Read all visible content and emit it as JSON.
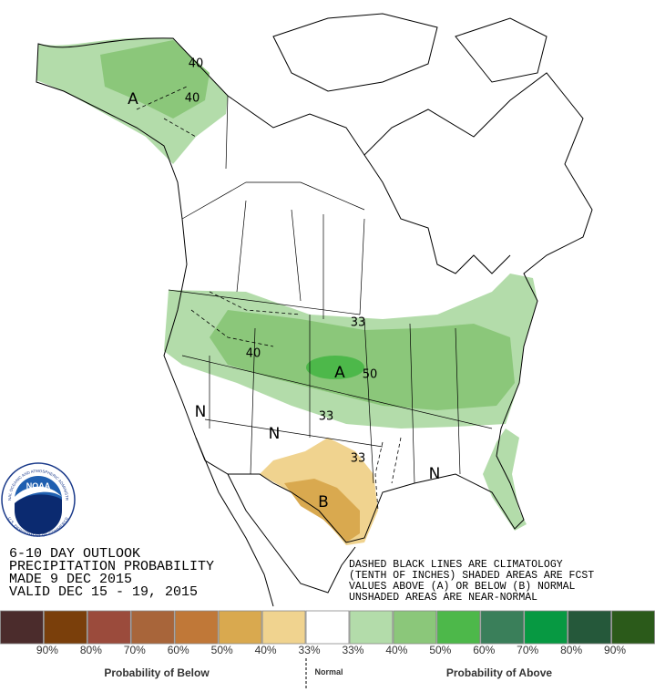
{
  "map_labels": [
    "40",
    "40",
    "A",
    "33",
    "40",
    "A",
    "50",
    "33",
    "N",
    "N",
    "33",
    "N",
    "B"
  ],
  "title_block": [
    "6-10 DAY OUTLOOK",
    "PRECIPITATION PROBABILITY",
    "MADE  9 DEC 2015",
    "VALID  DEC 15 - 19, 2015"
  ],
  "notes": [
    "DASHED BLACK LINES ARE CLIMATOLOGY",
    "(TENTH OF INCHES) SHADED AREAS ARE FCST",
    "VALUES ABOVE (A) OR BELOW (B) NORMAL",
    "UNSHADED AREAS ARE NEAR-NORMAL"
  ],
  "logo": {
    "name": "NOAA",
    "ring_top": "NATIONAL OCEANIC AND ATMOSPHERIC ADMINISTRATION",
    "ring_bottom": "U.S. DEPARTMENT OF COMMERCE"
  },
  "legend": {
    "items": [
      {
        "color": "#4b2c2c"
      },
      {
        "color": "#7a3f0b"
      },
      {
        "color": "#9b4b3c"
      },
      {
        "color": "#a8653a"
      },
      {
        "color": "#c07838"
      },
      {
        "color": "#d9a94f"
      },
      {
        "color": "#f0d38f"
      },
      {
        "color": "#ffffff"
      },
      {
        "color": "#b3dcaa"
      },
      {
        "color": "#8bc77a"
      },
      {
        "color": "#4db84a"
      },
      {
        "color": "#3a7f5a"
      },
      {
        "color": "#079942"
      },
      {
        "color": "#25583a"
      },
      {
        "color": "#2b5a1a"
      }
    ],
    "labels": [
      "90%",
      "80%",
      "70%",
      "60%",
      "50%",
      "40%",
      "33%",
      "33%",
      "40%",
      "50%",
      "60%",
      "70%",
      "80%",
      "90%"
    ],
    "below": "Probability of Below",
    "normal": "Normal",
    "above": "Probability of Above"
  }
}
